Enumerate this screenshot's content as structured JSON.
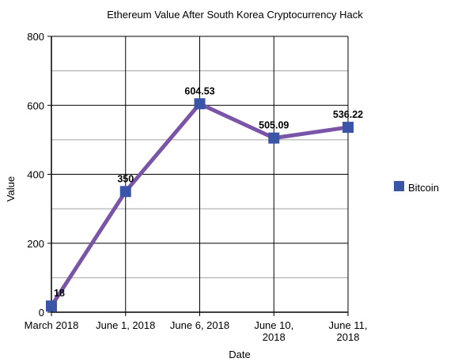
{
  "chart_data": {
    "type": "line",
    "title": "Ethereum Value After South Korea Cryptocurrency Hack",
    "xlabel": "Date",
    "ylabel": "Value",
    "categories": [
      [
        "March 2018"
      ],
      [
        "June 1, 2018"
      ],
      [
        "June 6, 2018"
      ],
      [
        "June 10,",
        "2018"
      ],
      [
        "June 11,",
        "2018"
      ]
    ],
    "series": [
      {
        "name": "Bitcoin",
        "values": [
          18,
          350,
          604.53,
          505.09,
          536.22
        ],
        "labels": [
          "18",
          "350",
          "604.53",
          "505.09",
          "536.22"
        ],
        "line_color": "#7a54a6",
        "marker_color": "#3a55a8"
      }
    ],
    "ylim": [
      0,
      800
    ],
    "yticks": [
      0,
      200,
      400,
      600,
      800
    ],
    "ygrid_minor_step": 100,
    "grid": true,
    "legend": "right"
  }
}
